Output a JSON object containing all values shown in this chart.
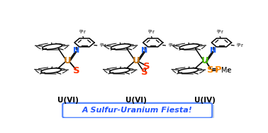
{
  "background_color": "#ffffff",
  "banner_text": "A Sulfur-Uranium Fiesta!",
  "banner_text_color": "#2255ff",
  "banner_border": "#5588ff",
  "banner_shadow": "#aabbcc",
  "labels": [
    "U(VI)",
    "U(VI)",
    "U(IV)"
  ],
  "U_colors": [
    "#c87818",
    "#c87818",
    "#44bb00"
  ],
  "N_color": "#2266ff",
  "S_color": "#ff3300",
  "S_PMe3_color": "#ff8800",
  "P_color": "#ff8800",
  "struct_centers": [
    0.165,
    0.495,
    0.825
  ],
  "struct_uy": 0.565
}
